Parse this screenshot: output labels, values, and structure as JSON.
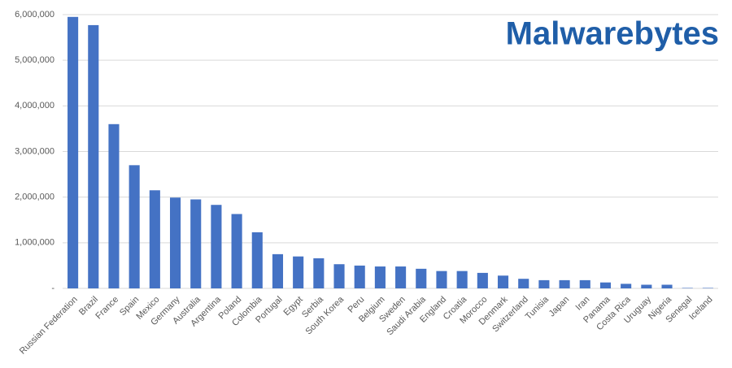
{
  "chart_data": {
    "type": "bar",
    "logo": "Malwarebytes",
    "categories": [
      "Russian Federation",
      "Brazil",
      "France",
      "Spain",
      "Mexico",
      "Germany",
      "Australia",
      "Argentina",
      "Poland",
      "Colombia",
      "Portugal",
      "Egypt",
      "Serbia",
      "South Korea",
      "Peru",
      "Belgium",
      "Sweden",
      "Saudi Arabia",
      "England",
      "Croatia",
      "Morocco",
      "Denmark",
      "Switzerland",
      "Tunisia",
      "Japan",
      "Iran",
      "Panama",
      "Costa Rica",
      "Uruguay",
      "Nigeria",
      "Senegal",
      "Iceland"
    ],
    "values": [
      5950000,
      5770000,
      3600000,
      2700000,
      2150000,
      1990000,
      1950000,
      1830000,
      1630000,
      1230000,
      750000,
      700000,
      660000,
      530000,
      500000,
      480000,
      480000,
      430000,
      380000,
      380000,
      340000,
      280000,
      210000,
      180000,
      180000,
      180000,
      130000,
      100000,
      80000,
      80000,
      10000,
      10000
    ],
    "color": "#4472c4",
    "ylim": [
      0,
      6000000
    ],
    "yticks": [
      {
        "value": 0,
        "label": "-"
      },
      {
        "value": 1000000,
        "label": "1,000,000"
      },
      {
        "value": 2000000,
        "label": "2,000,000"
      },
      {
        "value": 3000000,
        "label": "3,000,000"
      },
      {
        "value": 4000000,
        "label": "4,000,000"
      },
      {
        "value": 5000000,
        "label": "5,000,000"
      },
      {
        "value": 6000000,
        "label": "6,000,000"
      }
    ],
    "grid": true
  }
}
